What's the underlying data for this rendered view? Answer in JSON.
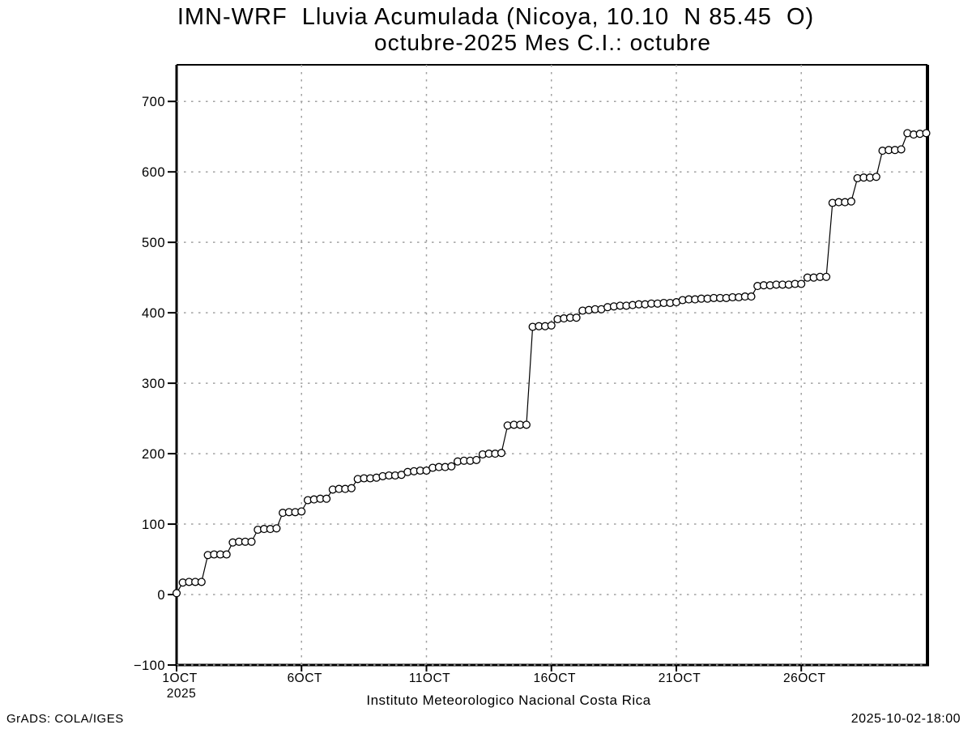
{
  "title": {
    "line1": "IMN-WRF  Lluvia Acumulada (Nicoya, 10.10  N 85.45  O)",
    "line2": "octubre-2025 Mes C.I.: octubre"
  },
  "footer": {
    "left": "GrADS: COLA/IGES",
    "center": "Instituto Meteorologico Nacional Costa Rica",
    "right": "2025-10-02-18:00"
  },
  "colors": {
    "background": "#ffffff",
    "line": "#000000",
    "marker_fill": "#ffffff",
    "grid": "#a0a0a0",
    "frame": "#000000",
    "text": "#000000"
  },
  "chart_data": {
    "type": "line",
    "title": "IMN-WRF Lluvia Acumulada (Nicoya, 10.10 N 85.45 O)",
    "subtitle": "octubre-2025 Mes C.I.: octubre",
    "xlabel": "Instituto Meteorologico Nacional Costa Rica",
    "ylabel": "",
    "grid": "dotted",
    "legend": "none",
    "marker": "open-circle",
    "ylim": [
      -100,
      752
    ],
    "xlim_days": [
      1,
      31.05
    ],
    "y_ticks": [
      -100,
      0,
      100,
      200,
      300,
      400,
      500,
      600,
      700
    ],
    "x_ticks": [
      {
        "day": 1,
        "label": "1OCT",
        "sublabel": "2025"
      },
      {
        "day": 6,
        "label": "6OCT"
      },
      {
        "day": 11,
        "label": "11OCT"
      },
      {
        "day": 16,
        "label": "16OCT"
      },
      {
        "day": 21,
        "label": "21OCT"
      },
      {
        "day": 26,
        "label": "26OCT"
      }
    ],
    "series": [
      {
        "name": "lluvia-acumulada-mm",
        "x_start_day": 1,
        "x_step_days": 0.25,
        "values": [
          2,
          17,
          18,
          18,
          18,
          56,
          57,
          57,
          57,
          74,
          75,
          75,
          75,
          92,
          93,
          93,
          94,
          116,
          117,
          117,
          118,
          134,
          135,
          136,
          136,
          149,
          150,
          150,
          151,
          164,
          165,
          165,
          166,
          168,
          169,
          169,
          170,
          174,
          175,
          176,
          176,
          180,
          181,
          181,
          182,
          189,
          190,
          190,
          191,
          199,
          200,
          200,
          201,
          240,
          241,
          241,
          241,
          380,
          381,
          381,
          382,
          391,
          392,
          393,
          393,
          403,
          404,
          405,
          405,
          408,
          409,
          410,
          410,
          411,
          412,
          412,
          413,
          413,
          414,
          414,
          415,
          418,
          419,
          419,
          420,
          420,
          421,
          421,
          421,
          422,
          422,
          423,
          423,
          438,
          439,
          439,
          440,
          440,
          440,
          441,
          441,
          450,
          450,
          451,
          451,
          556,
          557,
          557,
          558,
          591,
          592,
          592,
          593,
          630,
          631,
          631,
          632,
          655,
          653,
          654,
          655
        ]
      }
    ]
  }
}
